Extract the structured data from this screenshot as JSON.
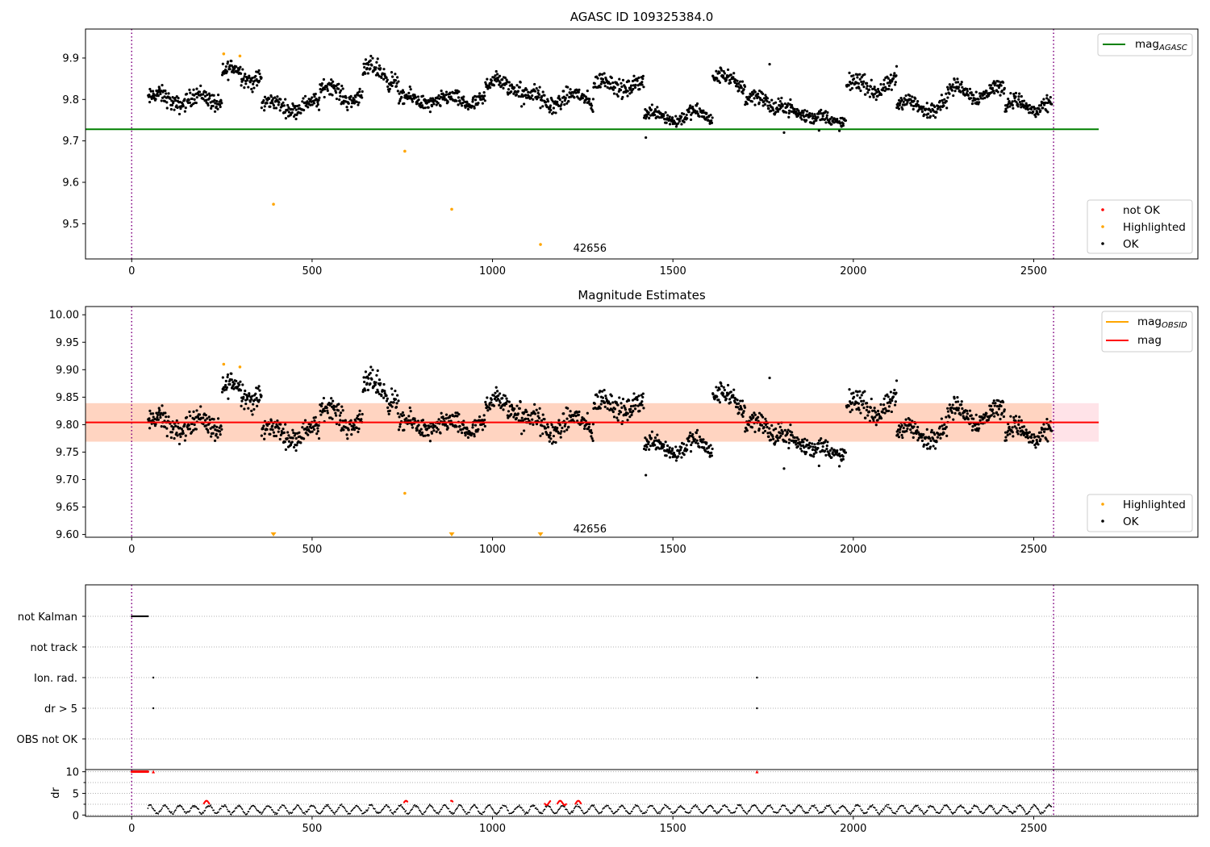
{
  "chart_data": [
    {
      "type": "scatter",
      "title": "AGASC ID 109325384.0",
      "xlim": [
        -128,
        2955
      ],
      "ylim": [
        9.415,
        9.97
      ],
      "xticks": [
        0,
        500,
        1000,
        1500,
        2000,
        2500
      ],
      "yticks": [
        9.5,
        9.6,
        9.7,
        9.8,
        9.9
      ],
      "vlines": [
        0,
        2555
      ],
      "hline": {
        "y": 9.728,
        "x": [
          -128,
          2680
        ],
        "color": "#008000"
      },
      "annotation": {
        "text": "42656",
        "x": 1270,
        "y": 9.44
      },
      "legend_lines": [
        {
          "label": "mag",
          "sub": "AGASC",
          "color": "#008000"
        }
      ],
      "legend_points": [
        {
          "label": "not OK",
          "color": "#ff0000"
        },
        {
          "label": "Highlighted",
          "color": "#ffa500"
        },
        {
          "label": "OK",
          "color": "#000000"
        }
      ],
      "highlighted": [
        [
          255,
          9.91
        ],
        [
          300,
          9.905
        ],
        [
          393,
          9.547
        ],
        [
          757,
          9.675
        ],
        [
          887,
          9.535
        ],
        [
          1133,
          9.45
        ]
      ],
      "segments": [
        {
          "x0": 45,
          "x1": 250,
          "base": 9.8,
          "amp": 0.014,
          "noise": 0.018
        },
        {
          "x0": 250,
          "x1": 360,
          "base": 9.86,
          "amp": 0.018,
          "noise": 0.02
        },
        {
          "x0": 360,
          "x1": 520,
          "base": 9.785,
          "amp": 0.012,
          "noise": 0.016
        },
        {
          "x0": 520,
          "x1": 640,
          "base": 9.815,
          "amp": 0.02,
          "noise": 0.018
        },
        {
          "x0": 640,
          "x1": 740,
          "base": 9.86,
          "amp": 0.02,
          "noise": 0.02
        },
        {
          "x0": 740,
          "x1": 980,
          "base": 9.797,
          "amp": 0.01,
          "noise": 0.016
        },
        {
          "x0": 980,
          "x1": 1080,
          "base": 9.835,
          "amp": 0.012,
          "noise": 0.018
        },
        {
          "x0": 1080,
          "x1": 1200,
          "base": 9.8,
          "amp": 0.016,
          "noise": 0.02
        },
        {
          "x0": 1200,
          "x1": 1280,
          "base": 9.8,
          "amp": 0.015,
          "noise": 0.018
        },
        {
          "x0": 1280,
          "x1": 1420,
          "base": 9.835,
          "amp": 0.012,
          "noise": 0.018
        },
        {
          "x0": 1420,
          "x1": 1610,
          "base": 9.76,
          "amp": 0.012,
          "noise": 0.015
        },
        {
          "x0": 1610,
          "x1": 1700,
          "base": 9.845,
          "amp": 0.015,
          "noise": 0.016
        },
        {
          "x0": 1700,
          "x1": 1780,
          "base": 9.795,
          "amp": 0.016,
          "noise": 0.018
        },
        {
          "x0": 1780,
          "x1": 1880,
          "base": 9.772,
          "amp": 0.012,
          "noise": 0.016
        },
        {
          "x0": 1880,
          "x1": 1980,
          "base": 9.752,
          "amp": 0.01,
          "noise": 0.014
        },
        {
          "x0": 1980,
          "x1": 2120,
          "base": 9.832,
          "amp": 0.014,
          "noise": 0.018
        },
        {
          "x0": 2120,
          "x1": 2260,
          "base": 9.785,
          "amp": 0.014,
          "noise": 0.016
        },
        {
          "x0": 2260,
          "x1": 2420,
          "base": 9.818,
          "amp": 0.014,
          "noise": 0.016
        },
        {
          "x0": 2420,
          "x1": 2550,
          "base": 9.785,
          "amp": 0.014,
          "noise": 0.016
        }
      ],
      "outliers": [
        [
          1425,
          9.708
        ],
        [
          1768,
          9.885
        ],
        [
          1808,
          9.72
        ],
        [
          1905,
          9.725
        ],
        [
          2120,
          9.88
        ]
      ]
    },
    {
      "type": "scatter",
      "title": "Magnitude Estimates",
      "xlim": [
        -128,
        2955
      ],
      "ylim": [
        9.595,
        10.015
      ],
      "xticks": [
        0,
        500,
        1000,
        1500,
        2000,
        2500
      ],
      "yticks": [
        9.6,
        9.65,
        9.7,
        9.75,
        9.8,
        9.85,
        9.9,
        9.95,
        10.0
      ],
      "ytick_labels": [
        "9.60",
        "9.65",
        "9.70",
        "9.75",
        "9.80",
        "9.85",
        "9.90",
        "9.95",
        "10.00"
      ],
      "vlines": [
        0,
        2555
      ],
      "mag_line": {
        "y": 9.804,
        "x": [
          -128,
          2680
        ],
        "color": "#ff0000"
      },
      "band_outer": {
        "y0": 9.769,
        "y1": 9.839,
        "x": [
          -128,
          2680
        ],
        "color": "#ffc0cb"
      },
      "band_inner": {
        "y0": 9.769,
        "y1": 9.839,
        "x": [
          -128,
          2550
        ],
        "color": "#ffc8a0"
      },
      "annotation": {
        "text": "42656",
        "x": 1270,
        "y": 9.61
      },
      "legend_lines": [
        {
          "label": "mag",
          "sub": "OBSID",
          "color": "#ffa500"
        },
        {
          "label": "mag",
          "sub": "",
          "color": "#ff0000"
        }
      ],
      "legend_points": [
        {
          "label": "Highlighted",
          "color": "#ffa500"
        },
        {
          "label": "OK",
          "color": "#000000"
        }
      ],
      "highlighted": [
        [
          255,
          9.91
        ],
        [
          300,
          9.905
        ],
        [
          757,
          9.675
        ]
      ],
      "lower_markers": [
        393,
        887,
        1133
      ]
    },
    {
      "type": "scatter",
      "xlim": [
        -128,
        2955
      ],
      "xticks": [
        0,
        500,
        1000,
        1500,
        2000,
        2500
      ],
      "vlines": [
        0,
        2555
      ],
      "flag_labels": [
        "not Kalman",
        "not track",
        "Ion. rad.",
        "dr > 5",
        "OBS not OK"
      ],
      "flags": {
        "not Kalman": {
          "x_range": [
            0,
            45
          ]
        },
        "Ion. rad.": {
          "points": [
            60,
            1733
          ]
        },
        "dr > 5": {
          "points": [
            60,
            1733
          ]
        }
      },
      "dr": {
        "ylabel": "dr",
        "ylim": [
          -0.3,
          10.5
        ],
        "yticks": [
          0,
          5,
          10
        ],
        "yticks_minor": [
          2.5,
          7.5
        ],
        "capped_at": 10,
        "capped_x": [
          0,
          45
        ],
        "capped_points": [
          60,
          1733
        ],
        "red_segments": [
          [
            200,
            215
          ],
          [
            755,
            765
          ],
          [
            885,
            890
          ],
          [
            1145,
            1160
          ],
          [
            1180,
            1205
          ],
          [
            1230,
            1245
          ]
        ]
      }
    }
  ]
}
